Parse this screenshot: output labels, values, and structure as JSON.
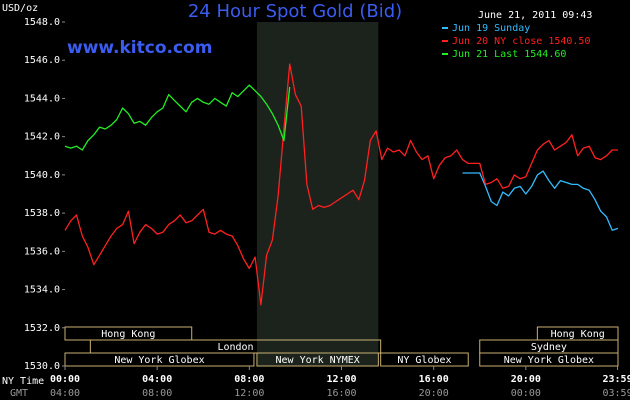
{
  "chart_data": {
    "type": "line",
    "title": "24 Hour Spot Gold (Bid)",
    "source": "www.kitco.com",
    "timestamp": "June 21, 2011 09:43",
    "y_label": "USD/oz",
    "x_label": "NY Time",
    "x2_label": "GMT",
    "x": [
      0,
      0.25,
      0.5,
      0.75,
      1,
      1.25,
      1.5,
      1.75,
      2,
      2.25,
      2.5,
      2.75,
      3,
      3.25,
      3.5,
      3.75,
      4,
      4.25,
      4.5,
      4.75,
      5,
      5.25,
      5.5,
      5.75,
      6,
      6.25,
      6.5,
      6.75,
      7,
      7.25,
      7.5,
      7.75,
      8,
      8.25,
      8.5,
      8.75,
      9,
      9.25,
      9.5,
      9.75,
      10,
      10.25,
      10.5,
      10.75,
      11,
      11.25,
      11.5,
      11.75,
      12,
      12.25,
      12.5,
      12.75,
      13,
      13.25,
      13.5,
      13.75,
      14,
      14.25,
      14.5,
      14.75,
      15,
      15.25,
      15.5,
      15.75,
      16,
      16.25,
      16.5,
      16.75,
      17,
      17.25,
      17.5,
      17.75,
      18,
      18.25,
      18.5,
      18.75,
      19,
      19.25,
      19.5,
      19.75,
      20,
      20.25,
      20.5,
      20.75,
      21,
      21.25,
      21.5,
      21.75,
      22,
      22.25,
      22.5,
      22.75,
      23,
      23.25,
      23.5,
      23.75,
      24
    ],
    "series": [
      {
        "name": "Jun 19 Sunday",
        "color": "#33bbff",
        "values": [
          null,
          null,
          null,
          null,
          null,
          null,
          null,
          null,
          null,
          null,
          null,
          null,
          null,
          null,
          null,
          null,
          null,
          null,
          null,
          null,
          null,
          null,
          null,
          null,
          null,
          null,
          null,
          null,
          null,
          null,
          null,
          null,
          null,
          null,
          null,
          null,
          null,
          null,
          null,
          null,
          null,
          null,
          null,
          null,
          null,
          null,
          null,
          null,
          null,
          null,
          null,
          null,
          null,
          null,
          null,
          null,
          null,
          null,
          null,
          null,
          null,
          null,
          null,
          null,
          null,
          null,
          null,
          null,
          null,
          1540.1,
          1540.1,
          1540.1,
          1540.1,
          1539.4,
          1538.6,
          1538.4,
          1539.1,
          1538.9,
          1539.3,
          1539.4,
          1539.0,
          1539.4,
          1540.0,
          1540.2,
          1539.7,
          1539.3,
          1539.7,
          1539.6,
          1539.5,
          1539.5,
          1539.3,
          1539.2,
          1538.7,
          1538.1,
          1537.8,
          1537.1,
          1537.2
        ]
      },
      {
        "name": "Jun 20 NY close 1540.50",
        "color": "#ff2020",
        "values": [
          1537.1,
          1537.6,
          1537.9,
          1536.8,
          1536.2,
          1535.3,
          1535.8,
          1536.3,
          1536.8,
          1537.2,
          1537.4,
          1538.1,
          1536.4,
          1537.0,
          1537.4,
          1537.2,
          1536.9,
          1537.0,
          1537.4,
          1537.6,
          1537.9,
          1537.5,
          1537.6,
          1537.9,
          1538.2,
          1537.0,
          1536.9,
          1537.1,
          1536.9,
          1536.8,
          1536.3,
          1535.6,
          1535.1,
          1535.7,
          1533.2,
          1535.8,
          1536.6,
          1538.9,
          1542.4,
          1545.8,
          1544.2,
          1543.6,
          1539.5,
          1538.2,
          1538.4,
          1538.3,
          1538.4,
          1538.6,
          1538.8,
          1539.0,
          1539.2,
          1538.7,
          1539.7,
          1541.8,
          1542.3,
          1540.8,
          1541.4,
          1541.2,
          1541.3,
          1541.0,
          1541.8,
          1541.2,
          1540.8,
          1541.0,
          1539.8,
          1540.5,
          1540.9,
          1541.0,
          1541.3,
          1540.8,
          1540.6,
          1540.6,
          1540.6,
          1539.5,
          1539.6,
          1539.8,
          1539.3,
          1539.4,
          1540.0,
          1539.8,
          1539.9,
          1540.6,
          1541.3,
          1541.6,
          1541.8,
          1541.3,
          1541.5,
          1541.7,
          1542.1,
          1541.0,
          1541.4,
          1541.5,
          1540.9,
          1540.8,
          1541.0,
          1541.3,
          1541.3
        ]
      },
      {
        "name": "Jun 21 Last 1544.60",
        "color": "#22ee22",
        "values": [
          1541.5,
          1541.4,
          1541.5,
          1541.3,
          1541.8,
          1542.1,
          1542.5,
          1542.4,
          1542.6,
          1542.9,
          1543.5,
          1543.2,
          1542.7,
          1542.8,
          1542.6,
          1543.0,
          1543.3,
          1543.5,
          1544.2,
          1543.9,
          1543.6,
          1543.3,
          1543.8,
          1544.0,
          1543.8,
          1543.7,
          1544.0,
          1543.8,
          1543.6,
          1544.3,
          1544.1,
          1544.4,
          1544.7,
          1544.4,
          1544.1,
          1543.7,
          1543.2,
          1542.6,
          1541.8,
          1544.6,
          null,
          null,
          null,
          null,
          null,
          null,
          null,
          null,
          null,
          null,
          null,
          null,
          null,
          null,
          null,
          null,
          null,
          null,
          null,
          null,
          null,
          null,
          null,
          null,
          null,
          null,
          null,
          null,
          null,
          null,
          null,
          null,
          null,
          null,
          null,
          null,
          null,
          null,
          null,
          null,
          null,
          null,
          null,
          null,
          null,
          null,
          null,
          null,
          null,
          null,
          null,
          null,
          null,
          null,
          null,
          null,
          null
        ]
      }
    ],
    "xlim": [
      0,
      24
    ],
    "xticks": [
      {
        "value": 0,
        "label": "00:00"
      },
      {
        "value": 4,
        "label": "04:00"
      },
      {
        "value": 8,
        "label": "08:00"
      },
      {
        "value": 12,
        "label": "12:00"
      },
      {
        "value": 16,
        "label": "16:00"
      },
      {
        "value": 20,
        "label": "20:00"
      },
      {
        "value": 23.98,
        "label": "23:59"
      }
    ],
    "x2ticks": [
      {
        "value": 0,
        "label": "04:00"
      },
      {
        "value": 4,
        "label": "08:00"
      },
      {
        "value": 8,
        "label": "12:00"
      },
      {
        "value": 12,
        "label": "16:00"
      },
      {
        "value": 16,
        "label": "20:00"
      },
      {
        "value": 20,
        "label": "00:00"
      },
      {
        "value": 23.98,
        "label": "03:59"
      }
    ],
    "ylim": [
      1530,
      1548
    ],
    "yticks": [
      {
        "value": 1530,
        "label": "1530.0"
      },
      {
        "value": 1532,
        "label": "1532.0"
      },
      {
        "value": 1534,
        "label": "1534.0"
      },
      {
        "value": 1536,
        "label": "1536.0"
      },
      {
        "value": 1538,
        "label": "1538.0"
      },
      {
        "value": 1540,
        "label": "1540.0"
      },
      {
        "value": 1542,
        "label": "1542.0"
      },
      {
        "value": 1544,
        "label": "1544.0"
      },
      {
        "value": 1546,
        "label": "1546.0"
      },
      {
        "value": 1548,
        "label": "1548.0"
      }
    ],
    "grid": false,
    "legend": "top-right",
    "sessions": [
      {
        "label": "Hong Kong",
        "start": 0,
        "end": 5.5,
        "row": 0
      },
      {
        "label": "London",
        "start": 1.1,
        "end": 13.7,
        "row": 1
      },
      {
        "label": "New York Globex",
        "start": 0,
        "end": 8.2,
        "row": 2
      },
      {
        "label": "New York NYMEX",
        "start": 8.33,
        "end": 13.6,
        "row": 2,
        "shaded": true
      },
      {
        "label": "NY Globex",
        "start": 13.7,
        "end": 17.5,
        "row": 2
      },
      {
        "label": "Hong Kong",
        "start": 20.5,
        "end": 24,
        "row": 0
      },
      {
        "label": "Sydney",
        "start": 18.0,
        "end": 24,
        "row": 1
      },
      {
        "label": "New York Globex",
        "start": 18.0,
        "end": 24,
        "row": 2
      }
    ]
  }
}
